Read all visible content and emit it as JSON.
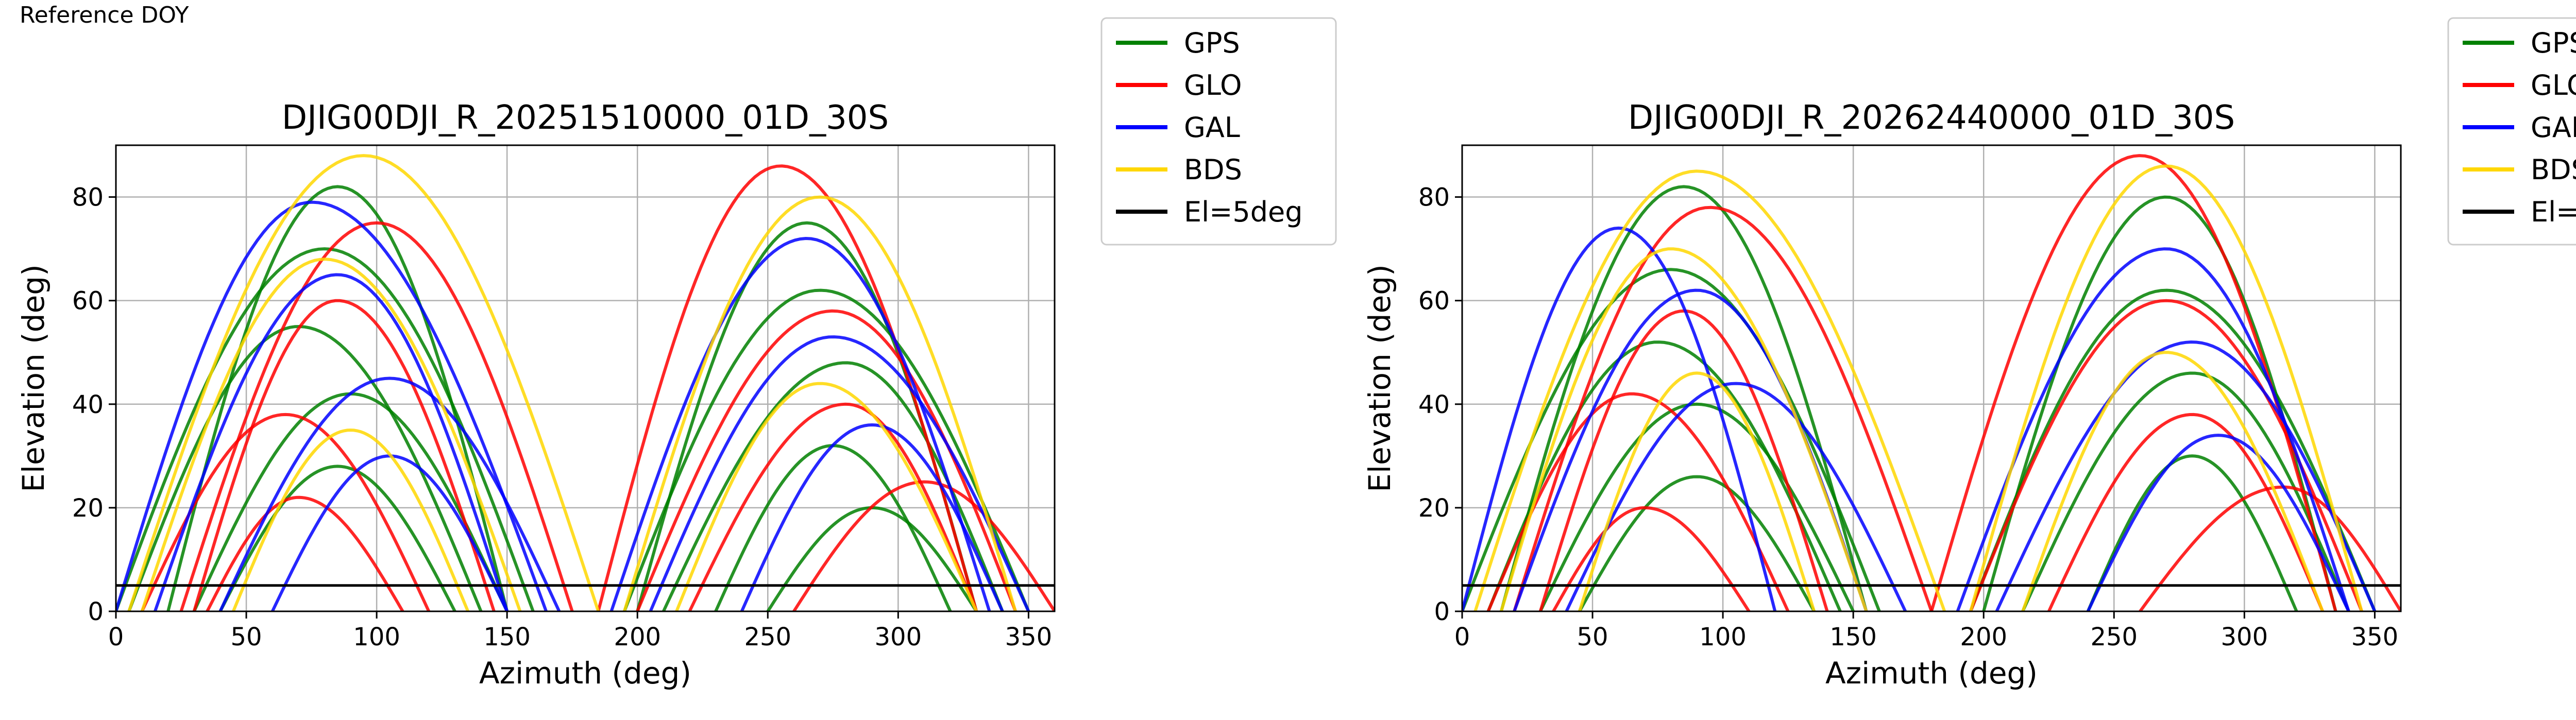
{
  "page": {
    "header_text": "Reference DOY"
  },
  "legend_entries": [
    {
      "label": "GPS",
      "color": "#008000"
    },
    {
      "label": "GLO",
      "color": "#ff0000"
    },
    {
      "label": "GAL",
      "color": "#0000ff"
    },
    {
      "label": "BDS",
      "color": "#ffd700"
    },
    {
      "label": "El=5deg",
      "color": "#000000"
    }
  ],
  "chart_data": [
    {
      "type": "scatter",
      "title": "DJIG00DJI_R_20251510000_01D_30S",
      "xlabel": "Azimuth (deg)",
      "ylabel": "Elevation (deg)",
      "xlim": [
        0,
        360
      ],
      "ylim": [
        0,
        90
      ],
      "xticks": [
        0,
        50,
        100,
        150,
        200,
        250,
        300,
        350
      ],
      "yticks": [
        0,
        20,
        40,
        60,
        80
      ],
      "grid": true,
      "legend_position": "outside-top-right",
      "cutoff_line": {
        "label": "El=5deg",
        "elevation": 5
      },
      "series": [
        {
          "name": "GPS",
          "color": "#008000",
          "tracks": [
            {
              "az_start": 20,
              "az_end": 150,
              "peak_az": 85,
              "peak_el": 82
            },
            {
              "az_start": 0,
              "az_end": 160,
              "peak_az": 80,
              "peak_el": 70
            },
            {
              "az_start": 5,
              "az_end": 140,
              "peak_az": 70,
              "peak_el": 55
            },
            {
              "az_start": 30,
              "az_end": 150,
              "peak_az": 90,
              "peak_el": 42
            },
            {
              "az_start": 40,
              "az_end": 130,
              "peak_az": 85,
              "peak_el": 28
            },
            {
              "az_start": 200,
              "az_end": 330,
              "peak_az": 265,
              "peak_el": 75
            },
            {
              "az_start": 195,
              "az_end": 350,
              "peak_az": 270,
              "peak_el": 62
            },
            {
              "az_start": 210,
              "az_end": 340,
              "peak_az": 280,
              "peak_el": 48
            },
            {
              "az_start": 230,
              "az_end": 320,
              "peak_az": 275,
              "peak_el": 32
            },
            {
              "az_start": 250,
              "az_end": 330,
              "peak_az": 290,
              "peak_el": 20
            }
          ]
        },
        {
          "name": "GLO",
          "color": "#ff0000",
          "tracks": [
            {
              "az_start": 25,
              "az_end": 175,
              "peak_az": 100,
              "peak_el": 75
            },
            {
              "az_start": 30,
              "az_end": 145,
              "peak_az": 85,
              "peak_el": 60
            },
            {
              "az_start": 10,
              "az_end": 120,
              "peak_az": 65,
              "peak_el": 38
            },
            {
              "az_start": 35,
              "az_end": 110,
              "peak_az": 70,
              "peak_el": 22
            },
            {
              "az_start": 185,
              "az_end": 330,
              "peak_az": 255,
              "peak_el": 86
            },
            {
              "az_start": 200,
              "az_end": 345,
              "peak_az": 275,
              "peak_el": 58
            },
            {
              "az_start": 220,
              "az_end": 330,
              "peak_az": 280,
              "peak_el": 40
            },
            {
              "az_start": 260,
              "az_end": 360,
              "peak_az": 310,
              "peak_el": 25
            }
          ]
        },
        {
          "name": "GAL",
          "color": "#0000ff",
          "tracks": [
            {
              "az_start": 0,
              "az_end": 165,
              "peak_az": 75,
              "peak_el": 79
            },
            {
              "az_start": 15,
              "az_end": 150,
              "peak_az": 85,
              "peak_el": 65
            },
            {
              "az_start": 40,
              "az_end": 170,
              "peak_az": 105,
              "peak_el": 45
            },
            {
              "az_start": 60,
              "az_end": 150,
              "peak_az": 105,
              "peak_el": 30
            },
            {
              "az_start": 190,
              "az_end": 335,
              "peak_az": 265,
              "peak_el": 72
            },
            {
              "az_start": 205,
              "az_end": 350,
              "peak_az": 275,
              "peak_el": 53
            },
            {
              "az_start": 240,
              "az_end": 340,
              "peak_az": 290,
              "peak_el": 36
            }
          ]
        },
        {
          "name": "BDS",
          "color": "#ffd700",
          "tracks": [
            {
              "az_start": 5,
              "az_end": 185,
              "peak_az": 95,
              "peak_el": 88
            },
            {
              "az_start": 10,
              "az_end": 155,
              "peak_az": 80,
              "peak_el": 68
            },
            {
              "az_start": 45,
              "az_end": 135,
              "peak_az": 90,
              "peak_el": 35
            },
            {
              "az_start": 195,
              "az_end": 345,
              "peak_az": 270,
              "peak_el": 80
            },
            {
              "az_start": 215,
              "az_end": 330,
              "peak_az": 270,
              "peak_el": 44
            }
          ]
        }
      ]
    },
    {
      "type": "scatter",
      "title": "DJIG00DJI_R_20262440000_01D_30S",
      "xlabel": "Azimuth (deg)",
      "ylabel": "Elevation (deg)",
      "xlim": [
        0,
        360
      ],
      "ylim": [
        0,
        90
      ],
      "xticks": [
        0,
        50,
        100,
        150,
        200,
        250,
        300,
        350
      ],
      "yticks": [
        0,
        20,
        40,
        60,
        80
      ],
      "grid": true,
      "legend_position": "outside-top-right",
      "cutoff_line": {
        "label": "El=5deg",
        "elevation": 5
      },
      "series": [
        {
          "name": "GPS",
          "color": "#008000",
          "tracks": [
            {
              "az_start": 15,
              "az_end": 155,
              "peak_az": 85,
              "peak_el": 82
            },
            {
              "az_start": 0,
              "az_end": 160,
              "peak_az": 80,
              "peak_el": 66
            },
            {
              "az_start": 10,
              "az_end": 145,
              "peak_az": 75,
              "peak_el": 52
            },
            {
              "az_start": 30,
              "az_end": 150,
              "peak_az": 90,
              "peak_el": 40
            },
            {
              "az_start": 45,
              "az_end": 135,
              "peak_az": 90,
              "peak_el": 26
            },
            {
              "az_start": 200,
              "az_end": 335,
              "peak_az": 270,
              "peak_el": 80
            },
            {
              "az_start": 195,
              "az_end": 350,
              "peak_az": 270,
              "peak_el": 62
            },
            {
              "az_start": 215,
              "az_end": 340,
              "peak_az": 280,
              "peak_el": 46
            },
            {
              "az_start": 240,
              "az_end": 320,
              "peak_az": 280,
              "peak_el": 30
            }
          ]
        },
        {
          "name": "GLO",
          "color": "#ff0000",
          "tracks": [
            {
              "az_start": 20,
              "az_end": 180,
              "peak_az": 95,
              "peak_el": 78
            },
            {
              "az_start": 30,
              "az_end": 140,
              "peak_az": 85,
              "peak_el": 58
            },
            {
              "az_start": 10,
              "az_end": 125,
              "peak_az": 65,
              "peak_el": 42
            },
            {
              "az_start": 35,
              "az_end": 110,
              "peak_az": 70,
              "peak_el": 20
            },
            {
              "az_start": 180,
              "az_end": 335,
              "peak_az": 260,
              "peak_el": 88
            },
            {
              "az_start": 195,
              "az_end": 345,
              "peak_az": 270,
              "peak_el": 60
            },
            {
              "az_start": 225,
              "az_end": 330,
              "peak_az": 280,
              "peak_el": 38
            },
            {
              "az_start": 260,
              "az_end": 360,
              "peak_az": 315,
              "peak_el": 24
            }
          ]
        },
        {
          "name": "GAL",
          "color": "#0000ff",
          "tracks": [
            {
              "az_start": 0,
              "az_end": 120,
              "peak_az": 60,
              "peak_el": 74
            },
            {
              "az_start": 20,
              "az_end": 155,
              "peak_az": 90,
              "peak_el": 62
            },
            {
              "az_start": 40,
              "az_end": 170,
              "peak_az": 105,
              "peak_el": 44
            },
            {
              "az_start": 190,
              "az_end": 340,
              "peak_az": 270,
              "peak_el": 70
            },
            {
              "az_start": 205,
              "az_end": 350,
              "peak_az": 280,
              "peak_el": 52
            },
            {
              "az_start": 240,
              "az_end": 340,
              "peak_az": 290,
              "peak_el": 34
            }
          ]
        },
        {
          "name": "BDS",
          "color": "#ffd700",
          "tracks": [
            {
              "az_start": 5,
              "az_end": 185,
              "peak_az": 90,
              "peak_el": 85
            },
            {
              "az_start": 15,
              "az_end": 155,
              "peak_az": 80,
              "peak_el": 70
            },
            {
              "az_start": 45,
              "az_end": 135,
              "peak_az": 90,
              "peak_el": 46
            },
            {
              "az_start": 195,
              "az_end": 345,
              "peak_az": 270,
              "peak_el": 86
            },
            {
              "az_start": 215,
              "az_end": 330,
              "peak_az": 270,
              "peak_el": 50
            }
          ]
        }
      ]
    }
  ]
}
